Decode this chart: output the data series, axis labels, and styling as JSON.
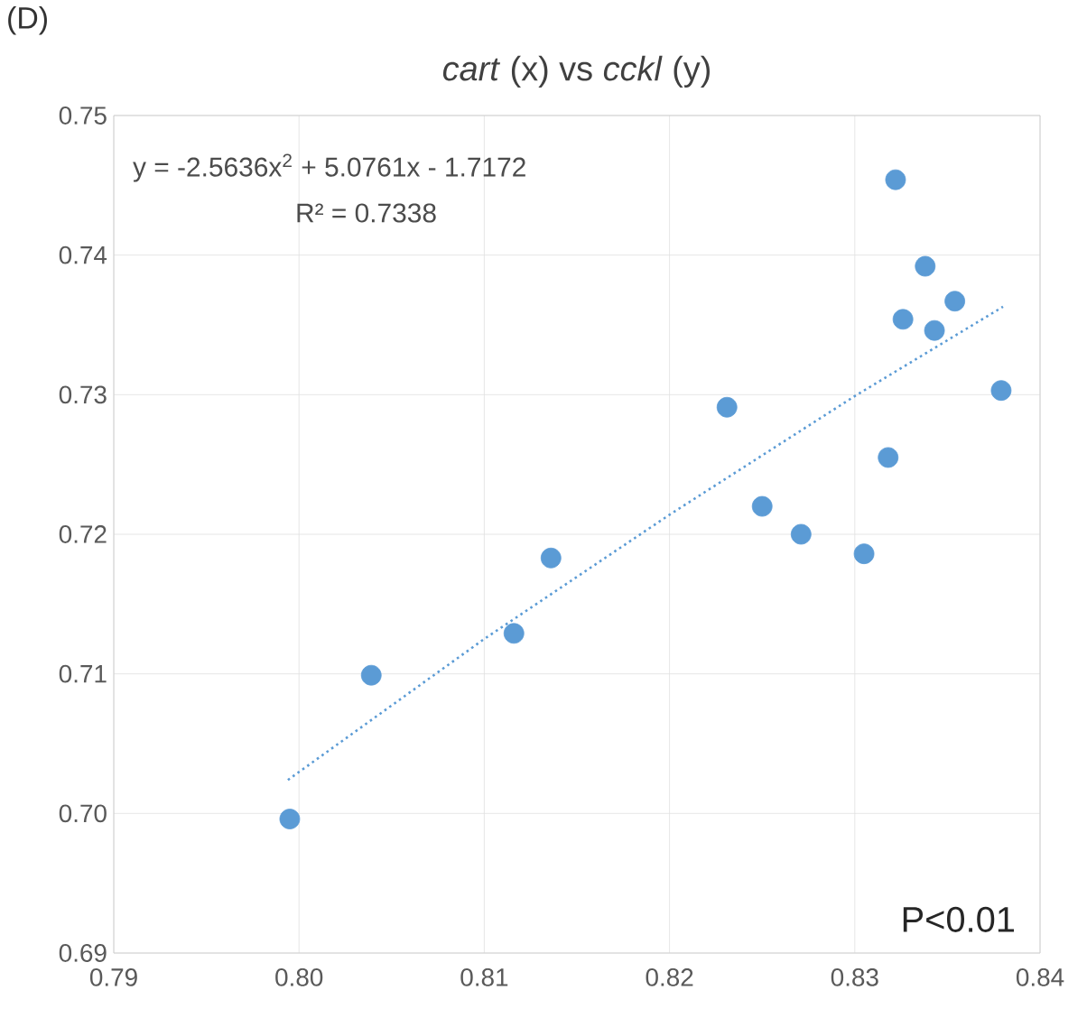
{
  "chart_data": {
    "type": "scatter",
    "title": "*cart* (x) vs *cckl* (y)",
    "grid": true,
    "xlim": [
      0.79,
      0.84
    ],
    "ylim": [
      0.69,
      0.75
    ],
    "xticks": [
      0.79,
      {
        "value": 0.8,
        "label": "0.80"
      },
      0.81,
      0.82,
      0.83,
      0.84
    ],
    "yticks": [
      0.69,
      {
        "value": 0.7,
        "label": "0.70"
      },
      0.71,
      0.72,
      0.73,
      0.74,
      0.75
    ],
    "series": [
      {
        "marker": "circle",
        "color": "#5b9bd5",
        "x": [
          0.7995,
          0.8039,
          0.8116,
          0.8136,
          0.8231,
          0.825,
          0.8271,
          0.8305,
          0.8318,
          0.8322,
          0.8326,
          0.8338,
          0.8343,
          0.8354,
          0.8379
        ],
        "values": [
          0.6996,
          0.7099,
          0.7129,
          0.7183,
          0.7291,
          0.722,
          0.72,
          0.7186,
          0.7255,
          0.7454,
          0.7354,
          0.7392,
          0.7346,
          0.7367,
          0.7303
        ]
      },
      {
        "type": "line",
        "color": "#5b9bd5",
        "line_style": "dotted",
        "marker": "none",
        "x": [
          0.7994,
          0.81,
          0.82,
          0.83,
          0.838
        ],
        "values": [
          0.7024,
          0.7125,
          0.7214,
          0.7299,
          0.7363
        ]
      }
    ],
    "annotations": [
      "(D)",
      "y = -2.5636x$^{2}$ + 5.0761x - 1.7172",
      "R² = 0.7338",
      "P<0.01"
    ]
  }
}
